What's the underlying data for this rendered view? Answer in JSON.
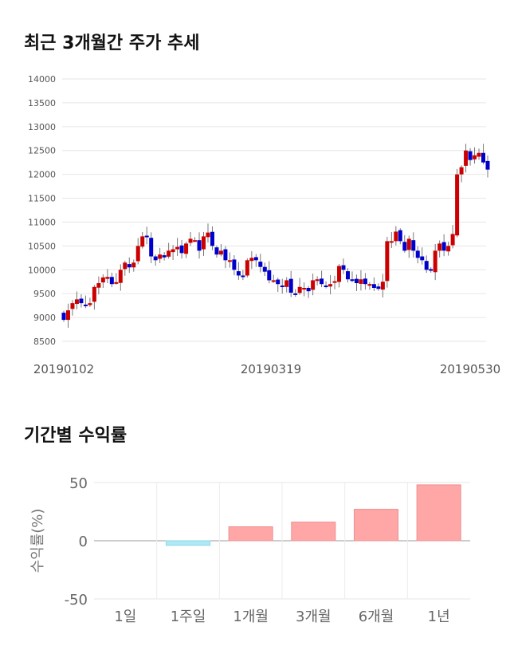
{
  "chart_data": [
    {
      "type": "candlestick",
      "title": "최근 3개월간 주가 추세",
      "y_ticks": [
        14000,
        13500,
        13000,
        12500,
        12000,
        11500,
        11000,
        10500,
        10000,
        9500,
        9000,
        8500
      ],
      "ylim": [
        8500,
        14000
      ],
      "x_tick_labels": [
        "20190102",
        "20190319",
        "20190530"
      ],
      "grid": true,
      "colors": {
        "up": "#cc0000",
        "down": "#0000cc",
        "wick": "#777777"
      },
      "closes": [
        8950,
        9150,
        9300,
        9380,
        9300,
        9260,
        9300,
        9640,
        9720,
        9840,
        9850,
        9700,
        9740,
        10000,
        10150,
        10050,
        10150,
        10500,
        10700,
        10700,
        10280,
        10200,
        10320,
        10260,
        10400,
        10430,
        10480,
        10350,
        10550,
        10650,
        10620,
        10400,
        10700,
        10780,
        10500,
        10320,
        10400,
        10200,
        10200,
        10000,
        9880,
        9850,
        10200,
        10250,
        10200,
        10060,
        9960,
        9780,
        9780,
        9700,
        9640,
        9780,
        9520,
        9500,
        9640,
        9620,
        9550,
        9780,
        9800,
        9700,
        9650,
        9700,
        9760,
        10080,
        10000,
        9800,
        9780,
        9720,
        9800,
        9700,
        9700,
        9620,
        9600,
        9750,
        10600,
        10600,
        10800,
        10600,
        10400,
        10650,
        10400,
        10250,
        10200,
        10000,
        9980,
        10400,
        10550,
        10400,
        10500,
        10750,
        12000,
        12150,
        12500,
        12300,
        12400,
        12450,
        12250,
        12100
      ]
    },
    {
      "type": "bar",
      "title": "기간별 수익률",
      "categories": [
        "1일",
        "1주일",
        "1개월",
        "3개월",
        "6개월",
        "1년"
      ],
      "values": [
        0,
        -4,
        12,
        16,
        27,
        48
      ],
      "ylabel": "수익률(%)",
      "ylim": [
        -50,
        50
      ],
      "y_ticks": [
        50,
        0,
        -50
      ],
      "grid": true,
      "colors": {
        "positive": "#ffa6a6",
        "negative": "#aee9f5"
      }
    }
  ]
}
